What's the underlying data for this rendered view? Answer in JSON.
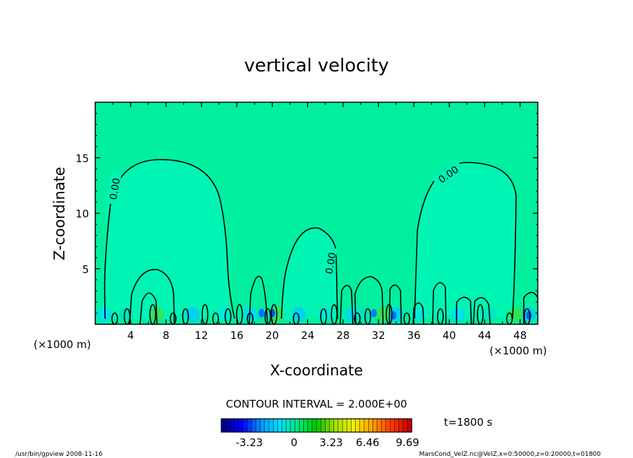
{
  "chart_data": {
    "type": "heatmap",
    "title": "vertical velocity",
    "xlabel": "X-coordinate",
    "ylabel": "Z-coordinate",
    "x_unit_left": "(×1000 m)",
    "x_unit_right": "(×1000 m)",
    "xlim": [
      0,
      50
    ],
    "ylim": [
      0,
      20
    ],
    "xticks": [
      4,
      8,
      12,
      16,
      20,
      24,
      28,
      32,
      36,
      40,
      44,
      48
    ],
    "yticks": [
      5,
      10,
      15
    ],
    "background_field_color": "#00f0a0",
    "plume_field_color": "#00f5b4",
    "contour_labels": [
      {
        "text": "0.00",
        "x": 2.2,
        "z": 12.2
      },
      {
        "text": "0.00",
        "x": 26.6,
        "z": 5.5
      },
      {
        "text": "0.00",
        "x": 39.9,
        "z": 13.5
      }
    ],
    "contour_interval_text": "CONTOUR INTERVAL = 2.000E+00",
    "colorbar": {
      "ticks": [
        "-3.23",
        "0",
        "3.23",
        "6.46",
        "9.69"
      ],
      "colors": [
        "#00008c",
        "#0000ff",
        "#0096ff",
        "#00e0ff",
        "#00e878",
        "#00c800",
        "#a0e000",
        "#f0f000",
        "#ffa000",
        "#ff3c00",
        "#c80000"
      ]
    },
    "time_label": "t=1800 s",
    "footer_left": "/usr/bin/gpview  2008-11-16",
    "footer_right": "MarsCond_VelZ.nc@VelZ,x=0:50000,z=0:20000,t=01800"
  }
}
